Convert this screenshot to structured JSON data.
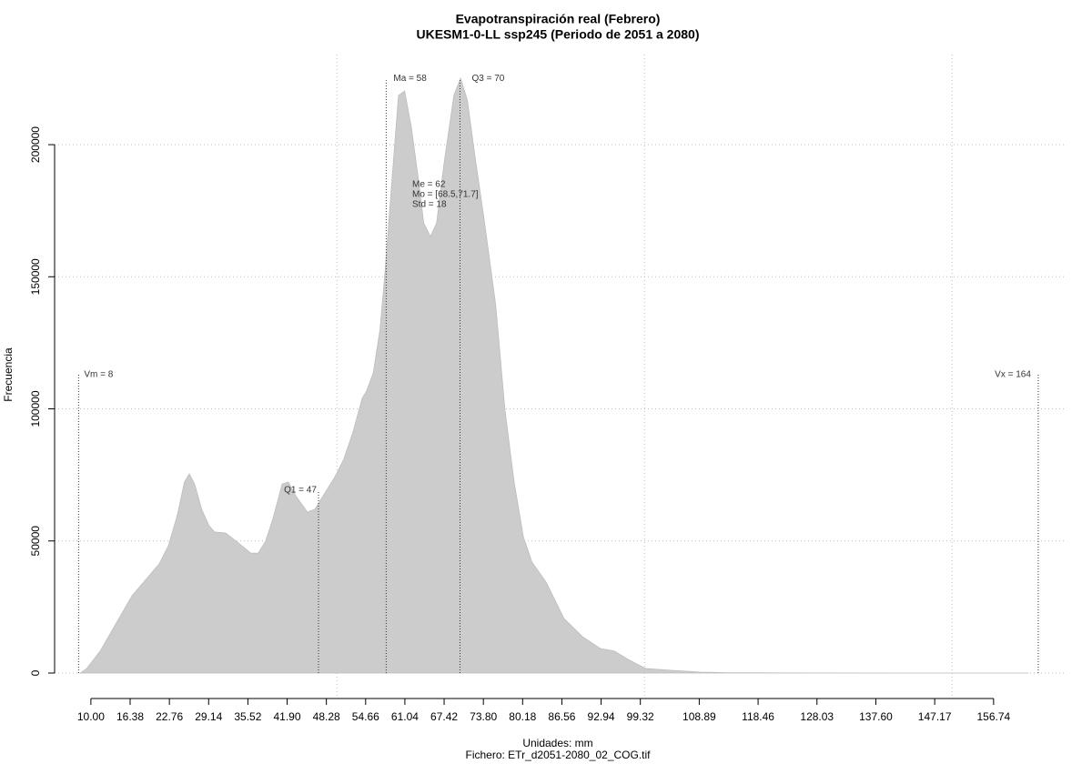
{
  "chart_data": {
    "type": "area",
    "title": "Evapotranspiración real (Febrero)",
    "subtitle": "UKESM1-0-LL ssp245 (Periodo de 2051 a 2080)",
    "x_label": "Unidades: mm",
    "caption": "Fichero: ETr_d2051-2080_02_COG.tif",
    "y_label": "Frecuencia",
    "color": "#cccccc",
    "x": [
      8.3,
      9.3,
      11.5,
      13.7,
      16.7,
      19.6,
      21.1,
      22.6,
      24.1,
      25.2,
      26.0,
      26.9,
      28.0,
      29.2,
      30.1,
      31.9,
      34.0,
      36.0,
      37.2,
      38.4,
      39.6,
      41.1,
      42.1,
      43.3,
      45.2,
      46.4,
      48.2,
      49.6,
      51.1,
      52.6,
      54.1,
      54.8,
      55.9,
      57.0,
      57.8,
      58.8,
      60.0,
      61.0,
      62.1,
      63.3,
      64.1,
      65.2,
      66.2,
      67.4,
      69.0,
      70.1,
      71.2,
      72.4,
      73.9,
      75.8,
      77.3,
      78.8,
      80.3,
      81.7,
      84.0,
      86.9,
      89.9,
      92.8,
      95.1,
      97.3,
      100.2,
      104.7,
      109.1,
      113.6,
      128.3,
      162.4
    ],
    "values": [
      0,
      1700,
      8300,
      17200,
      29300,
      37200,
      41300,
      48200,
      60200,
      72300,
      75400,
      71300,
      62000,
      55800,
      53400,
      53000,
      49200,
      45400,
      45400,
      49900,
      58500,
      71600,
      72300,
      67100,
      60900,
      62000,
      68800,
      74000,
      80900,
      91200,
      104000,
      106700,
      113600,
      130100,
      151400,
      182400,
      218600,
      220300,
      206500,
      185900,
      170400,
      165200,
      170400,
      192800,
      218600,
      225100,
      216800,
      196200,
      172100,
      139400,
      99800,
      72300,
      51600,
      42000,
      34400,
      20700,
      13800,
      9300,
      8300,
      5200,
      1700,
      1000,
      340,
      100,
      20,
      0
    ],
    "xlim": [
      4.1,
      168.3
    ],
    "ylim": [
      -9640,
      234100
    ],
    "xticks": [
      {
        "value": 10,
        "label": "10.00"
      },
      16.38,
      22.76,
      29.14,
      35.52,
      {
        "value": 41.9,
        "label": "41.90"
      },
      48.28,
      54.66,
      61.04,
      67.42,
      {
        "value": 73.8,
        "label": "73.80"
      },
      80.18,
      86.56,
      92.94,
      99.32,
      108.89,
      118.46,
      128.03,
      {
        "value": 137.6,
        "label": "137.60"
      },
      147.17,
      156.74
    ],
    "yticks": [
      0,
      50000,
      100000,
      150000,
      200000
    ],
    "xgrid": [
      50,
      100,
      150
    ],
    "grid": true,
    "annotations": [
      {
        "label": "Vm = 8",
        "x": 8,
        "y": 112900
      },
      {
        "label": "Q1 = 47",
        "x": 47,
        "y": 68840
      },
      {
        "label": "Ma = 58",
        "x": 58,
        "y": 224400
      },
      {
        "label": "Q3 = 70",
        "x": 70,
        "y": 224400
      },
      {
        "label": "Vx = 164",
        "x": 164,
        "y": 112900
      }
    ],
    "stats": [
      "Me = 62",
      "Mo = [68.5,71.7]",
      "Std = 18"
    ]
  }
}
